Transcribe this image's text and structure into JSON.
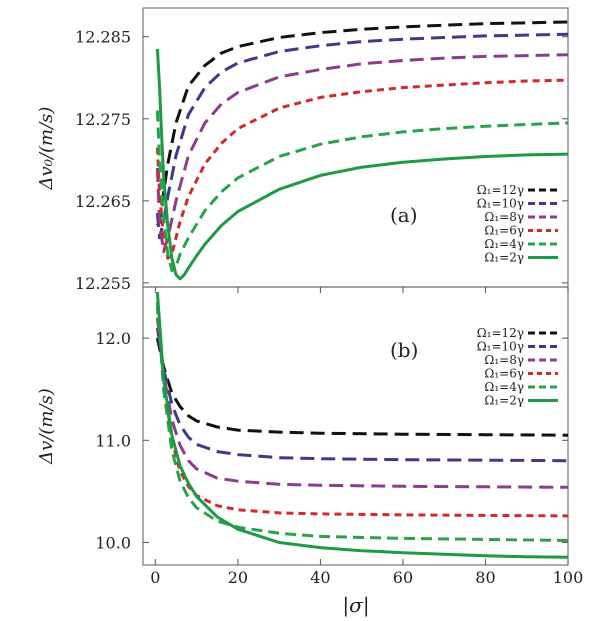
{
  "chart_data": [
    {
      "type": "line",
      "panel_label": "(a)",
      "ylabel": "Δv₀/(m/s)",
      "xlim": [
        -3,
        100
      ],
      "ylim": [
        12.2545,
        12.2885
      ],
      "yticks": [
        12.255,
        12.265,
        12.275,
        12.285
      ],
      "ytick_labels": [
        "12.255",
        "12.265",
        "12.275",
        "12.285"
      ],
      "legend_position": "right",
      "series": [
        {
          "name": "Ω₁=12γ",
          "color": "#111111",
          "dash": "long",
          "x": [
            0.5,
            1,
            2,
            3,
            5,
            8,
            12,
            16,
            20,
            30,
            40,
            50,
            60,
            70,
            80,
            90,
            100
          ],
          "y": [
            12.262,
            12.2625,
            12.266,
            12.2695,
            12.2745,
            12.279,
            12.2815,
            12.283,
            12.2838,
            12.2849,
            12.2855,
            12.2859,
            12.2862,
            12.2864,
            12.2866,
            12.2867,
            12.2868
          ]
        },
        {
          "name": "Ω₁=10γ",
          "color": "#3b3b8e",
          "dash": "long",
          "x": [
            0.5,
            1,
            2,
            3,
            5,
            8,
            12,
            16,
            20,
            30,
            40,
            50,
            60,
            70,
            80,
            90,
            100
          ],
          "y": [
            12.2635,
            12.2605,
            12.2625,
            12.2655,
            12.2705,
            12.2755,
            12.2788,
            12.2807,
            12.2818,
            12.2832,
            12.2839,
            12.2844,
            12.2847,
            12.2849,
            12.2851,
            12.2852,
            12.2853
          ]
        },
        {
          "name": "Ω₁=8γ",
          "color": "#8e3a8e",
          "dash": "long",
          "x": [
            0.5,
            1,
            2,
            3,
            5,
            8,
            12,
            16,
            20,
            30,
            40,
            50,
            60,
            70,
            80,
            90,
            100
          ],
          "y": [
            12.269,
            12.2625,
            12.2588,
            12.2605,
            12.265,
            12.2705,
            12.2745,
            12.2768,
            12.2782,
            12.2801,
            12.281,
            12.2817,
            12.2821,
            12.2824,
            12.2826,
            12.2827,
            12.2828
          ]
        },
        {
          "name": "Ω₁=6γ",
          "color": "#d02a2a",
          "dash": "short",
          "x": [
            0.5,
            1,
            2,
            3,
            4,
            6,
            8,
            12,
            16,
            20,
            30,
            40,
            50,
            60,
            70,
            80,
            90,
            100
          ],
          "y": [
            12.2715,
            12.266,
            12.2605,
            12.258,
            12.2585,
            12.2625,
            12.2655,
            12.2695,
            12.272,
            12.2738,
            12.2763,
            12.2776,
            12.2783,
            12.2788,
            12.2791,
            12.2794,
            12.2796,
            12.2797
          ]
        },
        {
          "name": "Ω₁=4γ",
          "color": "#2aa24a",
          "dash": "medium",
          "x": [
            0.5,
            1,
            2,
            3,
            4,
            5,
            6,
            8,
            12,
            16,
            20,
            30,
            40,
            50,
            60,
            70,
            80,
            90,
            100
          ],
          "y": [
            12.276,
            12.27,
            12.263,
            12.2585,
            12.2565,
            12.257,
            12.2585,
            12.2605,
            12.2638,
            12.2661,
            12.2678,
            12.2704,
            12.2719,
            12.2728,
            12.2734,
            12.2738,
            12.2741,
            12.2743,
            12.2745
          ]
        },
        {
          "name": "Ω₁=2γ",
          "color": "#1e9a44",
          "dash": "solid",
          "x": [
            0.5,
            1,
            1.5,
            2,
            3,
            4,
            5,
            6,
            7,
            8,
            10,
            12,
            16,
            20,
            30,
            40,
            50,
            60,
            70,
            80,
            90,
            100
          ],
          "y": [
            12.2835,
            12.279,
            12.273,
            12.268,
            12.262,
            12.258,
            12.256,
            12.2555,
            12.256,
            12.2568,
            12.2583,
            12.2597,
            12.262,
            12.2637,
            12.2664,
            12.2681,
            12.2691,
            12.2697,
            12.2701,
            12.2704,
            12.2706,
            12.2707
          ]
        }
      ]
    },
    {
      "type": "line",
      "panel_label": "(b)",
      "ylabel": "Δv/(m/s)",
      "xlabel": "|σ|",
      "xlim": [
        -3,
        100
      ],
      "ylim": [
        9.78,
        12.5
      ],
      "xticks": [
        0,
        20,
        40,
        60,
        80,
        100
      ],
      "xtick_labels": [
        "0",
        "20",
        "40",
        "60",
        "80",
        "100"
      ],
      "yticks": [
        10.0,
        11.0,
        12.0
      ],
      "ytick_labels": [
        "10.0",
        "11.0",
        "12.0"
      ],
      "legend_position": "top-right",
      "series": [
        {
          "name": "Ω₁=12γ",
          "color": "#111111",
          "dash": "long",
          "x": [
            0.5,
            2,
            4,
            6,
            8,
            10,
            15,
            20,
            30,
            40,
            60,
            80,
            100
          ],
          "y": [
            12.0,
            11.72,
            11.46,
            11.33,
            11.24,
            11.19,
            11.13,
            11.1,
            11.08,
            11.07,
            11.06,
            11.055,
            11.05
          ]
        },
        {
          "name": "Ω₁=10γ",
          "color": "#3b3b8e",
          "dash": "long",
          "x": [
            0.5,
            2,
            4,
            6,
            8,
            10,
            15,
            20,
            30,
            40,
            60,
            80,
            100
          ],
          "y": [
            12.1,
            11.7,
            11.35,
            11.15,
            11.03,
            10.96,
            10.89,
            10.86,
            10.83,
            10.82,
            10.81,
            10.805,
            10.8
          ]
        },
        {
          "name": "Ω₁=8γ",
          "color": "#8e3a8e",
          "dash": "long",
          "x": [
            0.5,
            2,
            4,
            6,
            8,
            10,
            15,
            20,
            30,
            40,
            60,
            80,
            100
          ],
          "y": [
            12.2,
            11.65,
            11.2,
            10.95,
            10.8,
            10.72,
            10.63,
            10.6,
            10.57,
            10.56,
            10.55,
            10.545,
            10.54
          ]
        },
        {
          "name": "Ω₁=6γ",
          "color": "#d02a2a",
          "dash": "short",
          "x": [
            0.5,
            2,
            4,
            6,
            8,
            10,
            15,
            20,
            30,
            40,
            60,
            80,
            100
          ],
          "y": [
            12.3,
            11.6,
            11.0,
            10.7,
            10.55,
            10.46,
            10.36,
            10.32,
            10.29,
            10.28,
            10.27,
            10.265,
            10.26
          ]
        },
        {
          "name": "Ω₁=4γ",
          "color": "#2aa24a",
          "dash": "medium",
          "x": [
            0.5,
            2,
            4,
            6,
            8,
            10,
            15,
            20,
            30,
            40,
            60,
            80,
            100
          ],
          "y": [
            12.35,
            11.5,
            10.9,
            10.6,
            10.44,
            10.34,
            10.21,
            10.15,
            10.09,
            10.06,
            10.04,
            10.03,
            10.02
          ]
        },
        {
          "name": "Ω₁=2γ",
          "color": "#1e9a44",
          "dash": "solid",
          "x": [
            0.5,
            2,
            4,
            6,
            8,
            10,
            15,
            20,
            30,
            40,
            50,
            60,
            70,
            80,
            90,
            100
          ],
          "y": [
            12.45,
            11.6,
            11.05,
            10.75,
            10.58,
            10.45,
            10.25,
            10.13,
            10.0,
            9.95,
            9.92,
            9.9,
            9.885,
            9.87,
            9.86,
            9.855
          ]
        }
      ]
    }
  ]
}
